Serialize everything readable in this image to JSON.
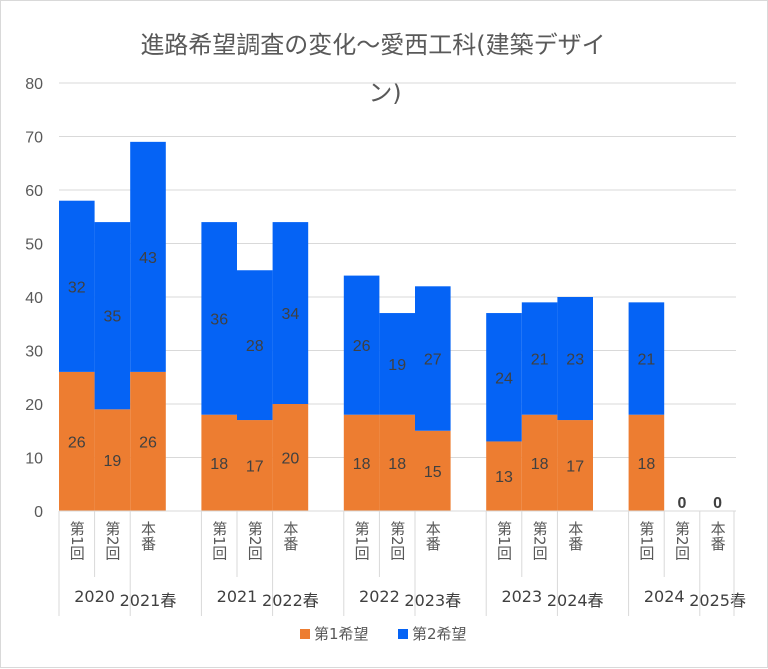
{
  "chart_data": {
    "type": "bar",
    "stacked": true,
    "title_lines": [
      "進路希望調査の変化～愛西工科(建築デザイ",
      "ン)"
    ],
    "ylim": [
      0,
      80
    ],
    "yticks": [
      0,
      10,
      20,
      30,
      40,
      50,
      60,
      70,
      80
    ],
    "grid": true,
    "groups": [
      {
        "label": "2020",
        "label_spring": "2021春",
        "categories": [
          "第1回",
          "第2回",
          "本番"
        ]
      },
      {
        "label": "2021",
        "label_spring": "2022春",
        "categories": [
          "第1回",
          "第2回",
          "本番"
        ]
      },
      {
        "label": "2022",
        "label_spring": "2023春",
        "categories": [
          "第1回",
          "第2回",
          "本番"
        ]
      },
      {
        "label": "2023",
        "label_spring": "2024春",
        "categories": [
          "第1回",
          "第2回",
          "本番"
        ]
      },
      {
        "label": "2024",
        "label_spring": "2025春",
        "categories": [
          "第1回",
          "第2回",
          "本番"
        ]
      }
    ],
    "series": [
      {
        "name": "第1希望",
        "color": "#ED7D31",
        "values": [
          26,
          19,
          26,
          18,
          17,
          20,
          18,
          18,
          15,
          13,
          18,
          17,
          18,
          null,
          null
        ]
      },
      {
        "name": "第2希望",
        "color": "#0563F5",
        "values": [
          32,
          35,
          43,
          36,
          28,
          34,
          26,
          19,
          27,
          24,
          21,
          23,
          21,
          0,
          0
        ]
      }
    ],
    "legend_position": "bottom"
  }
}
